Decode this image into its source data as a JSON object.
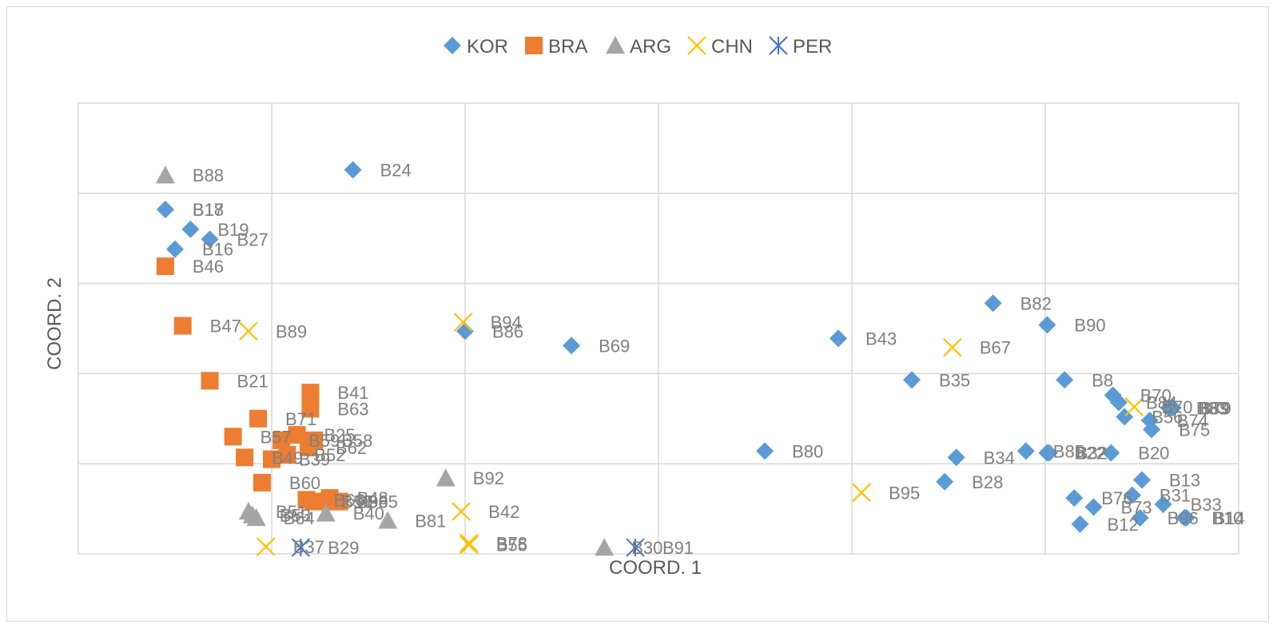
{
  "chart_data": {
    "type": "scatter",
    "title": "",
    "xlabel": "COORD. 1",
    "ylabel": "COORD. 2",
    "xlim": [
      0,
      6
    ],
    "ylim": [
      0,
      5
    ],
    "grid": true,
    "legend_position": "top",
    "tick_labels_shown": false,
    "series": [
      {
        "name": "KOR",
        "marker": "diamond",
        "color": "#5b9bd5",
        "points": [
          {
            "label": "B24",
            "x": 1.42,
            "y": 4.26
          },
          {
            "label": "B18",
            "x": 0.45,
            "y": 3.82
          },
          {
            "label": "B17",
            "x": 0.45,
            "y": 3.82
          },
          {
            "label": "B19",
            "x": 0.58,
            "y": 3.6
          },
          {
            "label": "B27",
            "x": 0.68,
            "y": 3.49
          },
          {
            "label": "B16",
            "x": 0.5,
            "y": 3.38
          },
          {
            "label": "B86",
            "x": 2.0,
            "y": 2.47
          },
          {
            "label": "B69",
            "x": 2.55,
            "y": 2.31
          },
          {
            "label": "B80",
            "x": 3.55,
            "y": 1.14
          },
          {
            "label": "B43",
            "x": 3.93,
            "y": 2.39
          },
          {
            "label": "B35",
            "x": 4.31,
            "y": 1.93
          },
          {
            "label": "B82",
            "x": 4.73,
            "y": 2.78
          },
          {
            "label": "B90",
            "x": 5.01,
            "y": 2.54
          },
          {
            "label": "B8",
            "x": 5.1,
            "y": 1.93
          },
          {
            "label": "B70",
            "x": 5.35,
            "y": 1.76
          },
          {
            "label": "B84",
            "x": 5.38,
            "y": 1.68
          },
          {
            "label": "B56",
            "x": 5.41,
            "y": 1.52
          },
          {
            "label": "B74",
            "x": 5.54,
            "y": 1.48
          },
          {
            "label": "B83",
            "x": 5.64,
            "y": 1.62
          },
          {
            "label": "B89",
            "x": 5.65,
            "y": 1.62
          },
          {
            "label": "B79",
            "x": 5.66,
            "y": 1.62
          },
          {
            "label": "B75",
            "x": 5.55,
            "y": 1.38
          },
          {
            "label": "B34",
            "x": 4.54,
            "y": 1.07
          },
          {
            "label": "B28",
            "x": 4.48,
            "y": 0.8
          },
          {
            "label": "B85",
            "x": 4.9,
            "y": 1.14
          },
          {
            "label": "B22",
            "x": 5.01,
            "y": 1.12
          },
          {
            "label": "B32",
            "x": 5.02,
            "y": 1.12
          },
          {
            "label": "B20",
            "x": 5.34,
            "y": 1.12
          },
          {
            "label": "B13",
            "x": 5.5,
            "y": 0.82
          },
          {
            "label": "B31",
            "x": 5.45,
            "y": 0.65
          },
          {
            "label": "B76",
            "x": 5.15,
            "y": 0.62
          },
          {
            "label": "B73",
            "x": 5.25,
            "y": 0.52
          },
          {
            "label": "B33",
            "x": 5.61,
            "y": 0.55
          },
          {
            "label": "B96",
            "x": 5.49,
            "y": 0.4
          },
          {
            "label": "B12",
            "x": 5.18,
            "y": 0.33
          },
          {
            "label": "B10",
            "x": 5.72,
            "y": 0.4
          },
          {
            "label": "B14",
            "x": 5.73,
            "y": 0.4
          }
        ]
      },
      {
        "name": "BRA",
        "marker": "square",
        "color": "#ed7d31",
        "points": [
          {
            "label": "B46",
            "x": 0.45,
            "y": 3.19
          },
          {
            "label": "B47",
            "x": 0.54,
            "y": 2.53
          },
          {
            "label": "B21",
            "x": 0.68,
            "y": 1.92
          },
          {
            "label": "B63",
            "x": 1.2,
            "y": 1.61
          },
          {
            "label": "B41",
            "x": 1.2,
            "y": 1.79
          },
          {
            "label": "B57",
            "x": 0.8,
            "y": 1.3
          },
          {
            "label": "B71",
            "x": 0.93,
            "y": 1.5
          },
          {
            "label": "B59",
            "x": 1.05,
            "y": 1.26
          },
          {
            "label": "B25",
            "x": 1.13,
            "y": 1.32
          },
          {
            "label": "B58",
            "x": 1.22,
            "y": 1.26
          },
          {
            "label": "B62",
            "x": 1.19,
            "y": 1.18
          },
          {
            "label": "B49",
            "x": 0.86,
            "y": 1.07
          },
          {
            "label": "B39",
            "x": 1.0,
            "y": 1.05
          },
          {
            "label": "B52",
            "x": 1.08,
            "y": 1.1
          },
          {
            "label": "B60",
            "x": 0.95,
            "y": 0.79
          },
          {
            "label": "B48",
            "x": 1.3,
            "y": 0.62
          },
          {
            "label": "B50",
            "x": 1.22,
            "y": 0.58
          },
          {
            "label": "B65",
            "x": 1.35,
            "y": 0.58
          },
          {
            "label": "B66",
            "x": 1.18,
            "y": 0.6
          },
          {
            "label": "B98",
            "x": 1.3,
            "y": 0.58
          }
        ]
      },
      {
        "name": "ARG",
        "marker": "triangle",
        "color": "#a5a5a5",
        "points": [
          {
            "label": "B88",
            "x": 0.45,
            "y": 4.2
          },
          {
            "label": "B92",
            "x": 1.9,
            "y": 0.84
          },
          {
            "label": "B81",
            "x": 1.6,
            "y": 0.37
          },
          {
            "label": "B40",
            "x": 1.28,
            "y": 0.45
          },
          {
            "label": "B30",
            "x": 2.72,
            "y": 0.07
          },
          {
            "label": "B51",
            "x": 0.88,
            "y": 0.47
          },
          {
            "label": "B53",
            "x": 0.9,
            "y": 0.43
          },
          {
            "label": "B64",
            "x": 0.92,
            "y": 0.4
          }
        ]
      },
      {
        "name": "CHN",
        "marker": "x",
        "color": "#ffc000",
        "points": [
          {
            "label": "B89",
            "x": 0.88,
            "y": 2.47
          },
          {
            "label": "B94",
            "x": 1.99,
            "y": 2.57
          },
          {
            "label": "B42",
            "x": 1.98,
            "y": 0.47
          },
          {
            "label": "B78",
            "x": 2.02,
            "y": 0.12
          },
          {
            "label": "B55",
            "x": 2.02,
            "y": 0.1
          },
          {
            "label": "B95",
            "x": 4.05,
            "y": 0.68
          },
          {
            "label": "B67",
            "x": 4.52,
            "y": 2.29
          },
          {
            "label": "B70",
            "x": 5.46,
            "y": 1.63
          },
          {
            "label": "B37",
            "x": 0.97,
            "y": 0.08
          }
        ]
      },
      {
        "name": "PER",
        "marker": "asterisk",
        "color": "#4472c4",
        "points": [
          {
            "label": "B91",
            "x": 2.88,
            "y": 0.07
          },
          {
            "label": "B29",
            "x": 1.15,
            "y": 0.07
          }
        ]
      }
    ]
  }
}
